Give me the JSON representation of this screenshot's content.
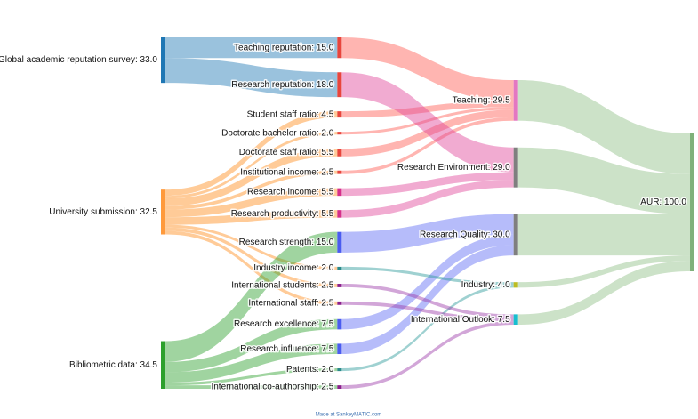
{
  "chart_data": {
    "type": "sankey",
    "footer": "Made at SankeyMATIC.com",
    "link_opacity": 0.45,
    "nodes": [
      {
        "label": "Global academic reputation survey: 33.0",
        "value": 33,
        "color": "#1f77b4"
      },
      {
        "label": "University submission: 32.5",
        "value": 32.5,
        "color": "#ff9a3c"
      },
      {
        "label": "Bibliometric data: 34.5",
        "value": 34.5,
        "color": "#2ca02c"
      },
      {
        "label": "Teaching reputation: 15.0",
        "value": 15,
        "color": "#e8453c"
      },
      {
        "label": "Research reputation: 18.0",
        "value": 18,
        "color": "#e8453c"
      },
      {
        "label": "Student staff ratio: 4.5",
        "value": 4.5,
        "color": "#e8453c"
      },
      {
        "label": "Doctorate bachelor ratio: 2.0",
        "value": 2,
        "color": "#e8453c"
      },
      {
        "label": "Doctorate staff ratio: 5.5",
        "value": 5.5,
        "color": "#e8453c"
      },
      {
        "label": "Institutional income: 2.5",
        "value": 2.5,
        "color": "#e8453c"
      },
      {
        "label": "Research income: 5.5",
        "value": 5.5,
        "color": "#d62f8a"
      },
      {
        "label": "Research productivity: 5.5",
        "value": 5.5,
        "color": "#d62f8a"
      },
      {
        "label": "Research strength: 15.0",
        "value": 15,
        "color": "#4a5cf0"
      },
      {
        "label": "Industry income: 2.0",
        "value": 2,
        "color": "#2a8a8a"
      },
      {
        "label": "International students: 2.5",
        "value": 2.5,
        "color": "#8b1f8b"
      },
      {
        "label": "International staff: 2.5",
        "value": 2.5,
        "color": "#8b1f8b"
      },
      {
        "label": "Research excellence: 7.5",
        "value": 7.5,
        "color": "#4a5cf0"
      },
      {
        "label": "Research influence: 7.5",
        "value": 7.5,
        "color": "#4a5cf0"
      },
      {
        "label": "Patents: 2.0",
        "value": 2,
        "color": "#2a8a8a"
      },
      {
        "label": "International co-authorship: 2.5",
        "value": 2.5,
        "color": "#8b1f8b"
      },
      {
        "label": "Teaching: 29.5",
        "value": 29.5,
        "color": "#e377c2"
      },
      {
        "label": "Research Environment: 29.0",
        "value": 29,
        "color": "#7f7f7f"
      },
      {
        "label": "Research Quality: 30.0",
        "value": 30,
        "color": "#7f7f7f"
      },
      {
        "label": "Industry: 4.0",
        "value": 4,
        "color": "#bcbd22"
      },
      {
        "label": "International Outlook: 7.5",
        "value": 7.5,
        "color": "#17becf"
      },
      {
        "label": "AUR: 100.0",
        "value": 100,
        "color": "#7fb17a"
      }
    ],
    "links": [
      {
        "source": "Global academic reputation survey: 33.0",
        "target": "Teaching reputation: 15.0",
        "value": 15,
        "color": "#1f77b4"
      },
      {
        "source": "Global academic reputation survey: 33.0",
        "target": "Research reputation: 18.0",
        "value": 18,
        "color": "#1f77b4"
      },
      {
        "source": "University submission: 32.5",
        "target": "Student staff ratio: 4.5",
        "value": 4.5,
        "color": "#ff8c1a"
      },
      {
        "source": "University submission: 32.5",
        "target": "Doctorate bachelor ratio: 2.0",
        "value": 2,
        "color": "#ff8c1a"
      },
      {
        "source": "University submission: 32.5",
        "target": "Doctorate staff ratio: 5.5",
        "value": 5.5,
        "color": "#ff8c1a"
      },
      {
        "source": "University submission: 32.5",
        "target": "Institutional income: 2.5",
        "value": 2.5,
        "color": "#ff8c1a"
      },
      {
        "source": "University submission: 32.5",
        "target": "Research income: 5.5",
        "value": 5.5,
        "color": "#ff8c1a"
      },
      {
        "source": "University submission: 32.5",
        "target": "Research productivity: 5.5",
        "value": 5.5,
        "color": "#ff8c1a"
      },
      {
        "source": "University submission: 32.5",
        "target": "Industry income: 2.0",
        "value": 2,
        "color": "#ff8c1a"
      },
      {
        "source": "University submission: 32.5",
        "target": "International students: 2.5",
        "value": 2.5,
        "color": "#ff8c1a"
      },
      {
        "source": "University submission: 32.5",
        "target": "International staff: 2.5",
        "value": 2.5,
        "color": "#ff8c1a"
      },
      {
        "source": "Bibliometric data: 34.5",
        "target": "Research strength: 15.0",
        "value": 15,
        "color": "#2ca02c"
      },
      {
        "source": "Bibliometric data: 34.5",
        "target": "Research excellence: 7.5",
        "value": 7.5,
        "color": "#2ca02c"
      },
      {
        "source": "Bibliometric data: 34.5",
        "target": "Research influence: 7.5",
        "value": 7.5,
        "color": "#2ca02c"
      },
      {
        "source": "Bibliometric data: 34.5",
        "target": "Patents: 2.0",
        "value": 2,
        "color": "#2ca02c"
      },
      {
        "source": "Bibliometric data: 34.5",
        "target": "International co-authorship: 2.5",
        "value": 2.5,
        "color": "#2ca02c"
      },
      {
        "source": "Teaching reputation: 15.0",
        "target": "Teaching: 29.5",
        "value": 15,
        "color": "#ff5a52"
      },
      {
        "source": "Student staff ratio: 4.5",
        "target": "Teaching: 29.5",
        "value": 4.5,
        "color": "#ff5a52"
      },
      {
        "source": "Doctorate bachelor ratio: 2.0",
        "target": "Teaching: 29.5",
        "value": 2,
        "color": "#ff5a52"
      },
      {
        "source": "Doctorate staff ratio: 5.5",
        "target": "Teaching: 29.5",
        "value": 5.5,
        "color": "#ff5a52"
      },
      {
        "source": "Institutional income: 2.5",
        "target": "Teaching: 29.5",
        "value": 2.5,
        "color": "#ff5a52"
      },
      {
        "source": "Research reputation: 18.0",
        "target": "Research Environment: 29.0",
        "value": 18,
        "color": "#e0449a"
      },
      {
        "source": "Research income: 5.5",
        "target": "Research Environment: 29.0",
        "value": 5.5,
        "color": "#e0449a"
      },
      {
        "source": "Research productivity: 5.5",
        "target": "Research Environment: 29.0",
        "value": 5.5,
        "color": "#e0449a"
      },
      {
        "source": "Research strength: 15.0",
        "target": "Research Quality: 30.0",
        "value": 15,
        "color": "#5d6af5"
      },
      {
        "source": "Research excellence: 7.5",
        "target": "Research Quality: 30.0",
        "value": 7.5,
        "color": "#5d6af5"
      },
      {
        "source": "Research influence: 7.5",
        "target": "Research Quality: 30.0",
        "value": 7.5,
        "color": "#5d6af5"
      },
      {
        "source": "Industry income: 2.0",
        "target": "Industry: 4.0",
        "value": 2,
        "color": "#2b9a9a"
      },
      {
        "source": "Patents: 2.0",
        "target": "Industry: 4.0",
        "value": 2,
        "color": "#2b9a9a"
      },
      {
        "source": "International students: 2.5",
        "target": "International Outlook: 7.5",
        "value": 2.5,
        "color": "#9b3aa8"
      },
      {
        "source": "International staff: 2.5",
        "target": "International Outlook: 7.5",
        "value": 2.5,
        "color": "#9b3aa8"
      },
      {
        "source": "International co-authorship: 2.5",
        "target": "International Outlook: 7.5",
        "value": 2.5,
        "color": "#9b3aa8"
      },
      {
        "source": "Teaching: 29.5",
        "target": "AUR: 100.0",
        "value": 29.5,
        "color": "#8fbf86"
      },
      {
        "source": "Research Environment: 29.0",
        "target": "AUR: 100.0",
        "value": 29,
        "color": "#8fbf86"
      },
      {
        "source": "Research Quality: 30.0",
        "target": "AUR: 100.0",
        "value": 30,
        "color": "#8fbf86"
      },
      {
        "source": "Industry: 4.0",
        "target": "AUR: 100.0",
        "value": 4,
        "color": "#8fbf86"
      },
      {
        "source": "International Outlook: 7.5",
        "target": "AUR: 100.0",
        "value": 7.5,
        "color": "#8fbf86"
      }
    ]
  }
}
